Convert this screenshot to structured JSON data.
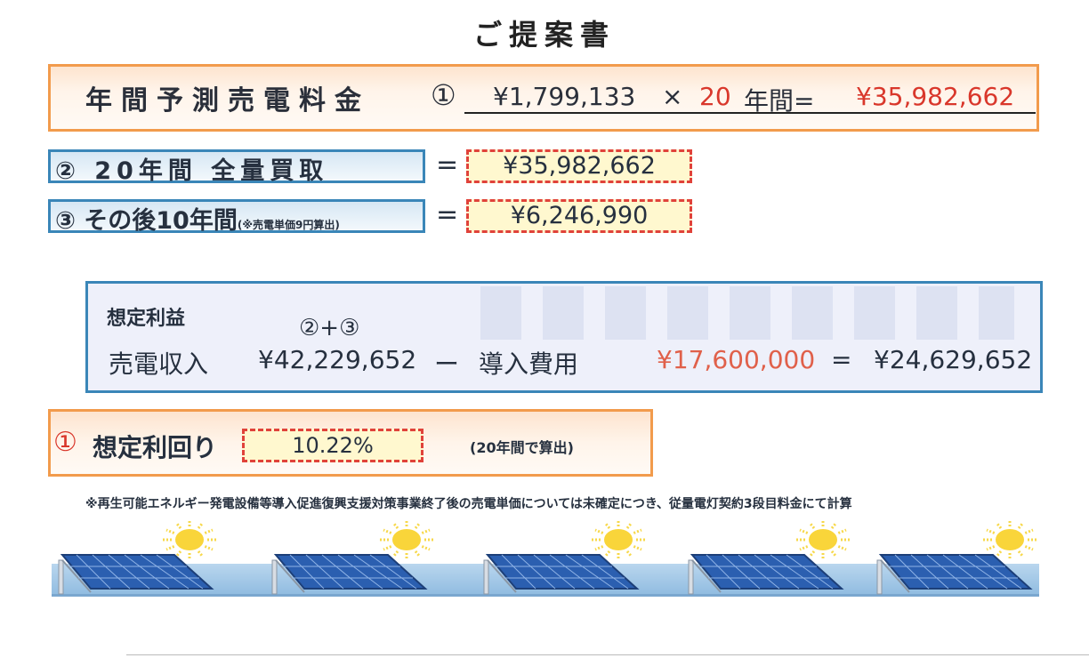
{
  "title": "ご提案書",
  "annual": {
    "label": "年間予測売電料金",
    "circle": "①",
    "value": "¥1,799,133",
    "times": "×",
    "years": "20",
    "years_suffix": "年間=",
    "total": "¥35,982,662"
  },
  "row2": {
    "label": "② 20年間 全量買取",
    "eq": "=",
    "value": "¥35,982,662"
  },
  "row3": {
    "label": "③ その後10年間",
    "note": "(※売電単価9円算出)",
    "eq": "=",
    "value": "¥6,246,990"
  },
  "profit": {
    "title": "想定利益",
    "formula": "②+③",
    "income_label": "売電収入",
    "income_value": "¥42,229,652",
    "minus": "ー",
    "cost_label": "導入費用",
    "cost_value": "¥17,600,000",
    "eq": "=",
    "result": "¥24,629,652"
  },
  "yield": {
    "circle": "①",
    "label": "想定利回り",
    "value": "10.22%",
    "note": "(20年間で算出)"
  },
  "footnote": "※再生可能エネルギー発電設備等導入促進復興支援対策事業終了後の売電単価については未確定につき、従量電灯契約3段目料金にて計算",
  "colors": {
    "orange_border": "#f29b4c",
    "blue_border": "#3a86b8",
    "red": "#d9372b",
    "dash_red": "#e0423a",
    "value_bg": "#fff8cf"
  }
}
